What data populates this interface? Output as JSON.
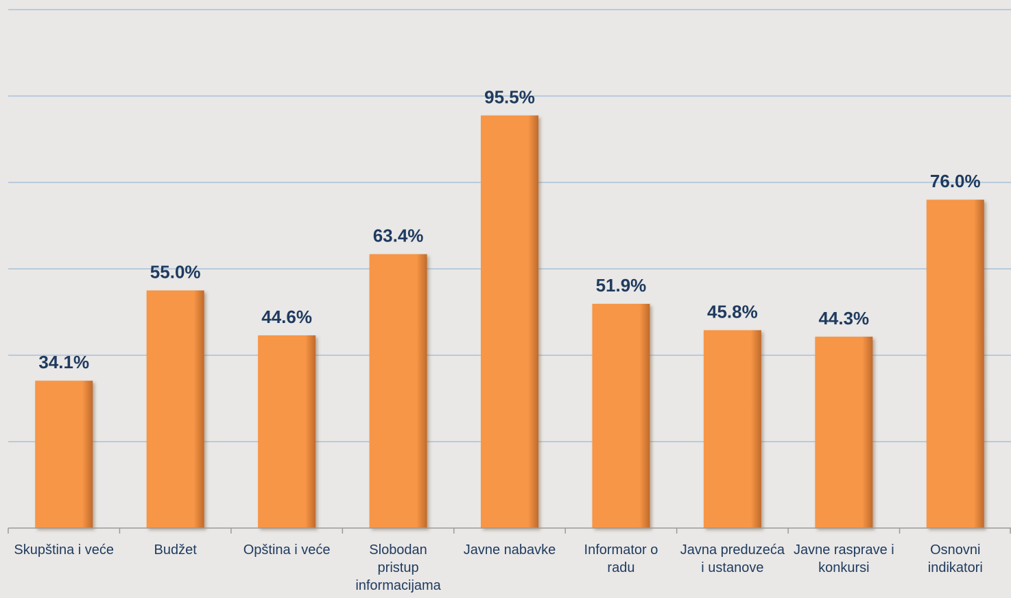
{
  "chart_data": {
    "type": "bar",
    "categories": [
      "Skupština i veće",
      "Budžet",
      "Opština i veće",
      "Slobodan pristup informacijama",
      "Javne nabavke",
      "Informator o radu",
      "Javna preduzeća i ustanove",
      "Javne rasprave i konkursi",
      "Osnovni indikatori"
    ],
    "category_lines": [
      [
        "Skupština i veće"
      ],
      [
        "Budžet"
      ],
      [
        "Opština i veće"
      ],
      [
        "Slobodan",
        "pristup",
        "informacijama"
      ],
      [
        "Javne nabavke"
      ],
      [
        "Informator o",
        "radu"
      ],
      [
        "Javna preduzeća",
        "i ustanove"
      ],
      [
        "Javne rasprave i",
        "konkursi"
      ],
      [
        "Osnovni",
        "indikatori"
      ]
    ],
    "values": [
      34.1,
      55.0,
      44.6,
      63.4,
      95.5,
      51.9,
      45.8,
      44.3,
      76.0
    ],
    "value_labels": [
      "34.1%",
      "55.0%",
      "44.6%",
      "63.4%",
      "95.5%",
      "51.9%",
      "45.8%",
      "44.3%",
      "76.0%"
    ],
    "title": "",
    "xlabel": "",
    "ylabel": "",
    "ylim": [
      0,
      120
    ],
    "gridlines": [
      20,
      40,
      60,
      80,
      100,
      120
    ],
    "grid": true,
    "legend": "none",
    "colors": {
      "bar": "#f79646",
      "bar_shadow": "#b9652a",
      "label": "#1f3a5f",
      "grid": "#a9c0d8",
      "axis": "#9a9a9a",
      "background": "#e9e8e6"
    }
  }
}
